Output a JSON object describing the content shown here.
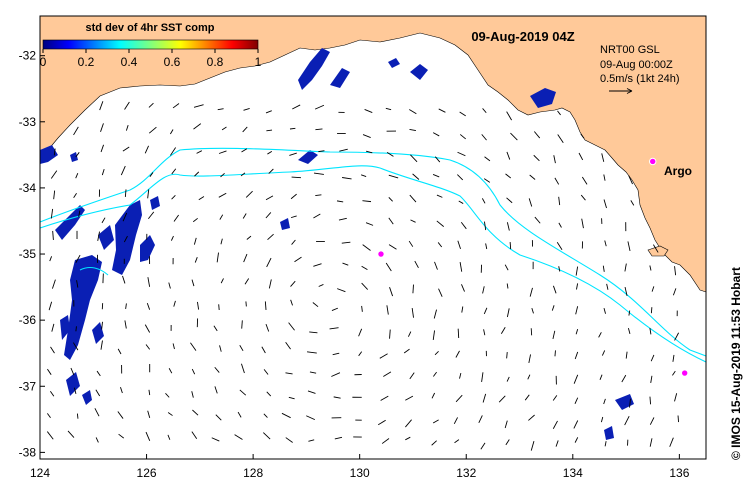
{
  "map": {
    "date_title": "09-Aug-2019 04Z",
    "colorbar": {
      "title": "std dev of 4hr SST comp",
      "ticks": [
        "0",
        "0.2",
        "0.4",
        "0.6",
        "0.8",
        "1"
      ],
      "range": [
        0,
        1
      ],
      "colormap": [
        "#00007f",
        "#0000ff",
        "#007fff",
        "#00ffff",
        "#7fff7f",
        "#ffff00",
        "#ff7f00",
        "#ff0000",
        "#7f0000"
      ]
    },
    "info": {
      "line1": "NRT00 GSL",
      "line2": "09-Aug 00:00Z",
      "line3": "0.5m/s (1kt 24h)"
    },
    "argo_label": "Argo",
    "credit": "© IMOS 15-Aug-2019 11:53 Hobart",
    "x_axis": {
      "range": [
        124,
        136.5
      ],
      "ticks": [
        "124",
        "126",
        "128",
        "130",
        "132",
        "134",
        "136"
      ]
    },
    "y_axis": {
      "range": [
        -38.1,
        -31.4
      ],
      "ticks": [
        "-32",
        "-33",
        "-34",
        "-35",
        "-36",
        "-37",
        "-38"
      ]
    },
    "argo_floats": [
      {
        "lon": 135.5,
        "lat": -33.6
      },
      {
        "lon": 130.4,
        "lat": -35.0
      },
      {
        "lon": 136.1,
        "lat": -36.8
      }
    ],
    "colors": {
      "land": "#ffc999",
      "contour": "#00e5ff",
      "argo": "#ff00ff",
      "sst_patch": "#0a1fb4"
    }
  }
}
